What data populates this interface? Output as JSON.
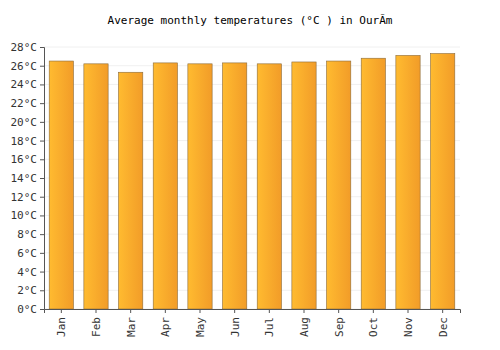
{
  "chart_data": {
    "type": "bar",
    "title": "Average monthly temperatures (°C ) in OurÃm",
    "categories": [
      "Jan",
      "Feb",
      "Mar",
      "Apr",
      "May",
      "Jun",
      "Jul",
      "Aug",
      "Sep",
      "Oct",
      "Nov",
      "Dec"
    ],
    "values": [
      26.5,
      26.2,
      25.3,
      26.3,
      26.2,
      26.3,
      26.2,
      26.4,
      26.5,
      26.8,
      27.1,
      27.3
    ],
    "color": "#ffa52a",
    "ylim": [
      0,
      28
    ],
    "yticks": [
      {
        "value": 0,
        "label": "0°C"
      },
      {
        "value": 2,
        "label": "2°C"
      },
      {
        "value": 4,
        "label": "4°C"
      },
      {
        "value": 6,
        "label": "6°C"
      },
      {
        "value": 8,
        "label": "8°C"
      },
      {
        "value": 10,
        "label": "10°C"
      },
      {
        "value": 12,
        "label": "12°C"
      },
      {
        "value": 14,
        "label": "14°C"
      },
      {
        "value": 16,
        "label": "16°C"
      },
      {
        "value": 18,
        "label": "18°C"
      },
      {
        "value": 20,
        "label": "20°C"
      },
      {
        "value": 22,
        "label": "22°C"
      },
      {
        "value": 24,
        "label": "24°C"
      },
      {
        "value": 26,
        "label": "26°C"
      },
      {
        "value": 28,
        "label": "28°C"
      }
    ],
    "grid": true
  }
}
